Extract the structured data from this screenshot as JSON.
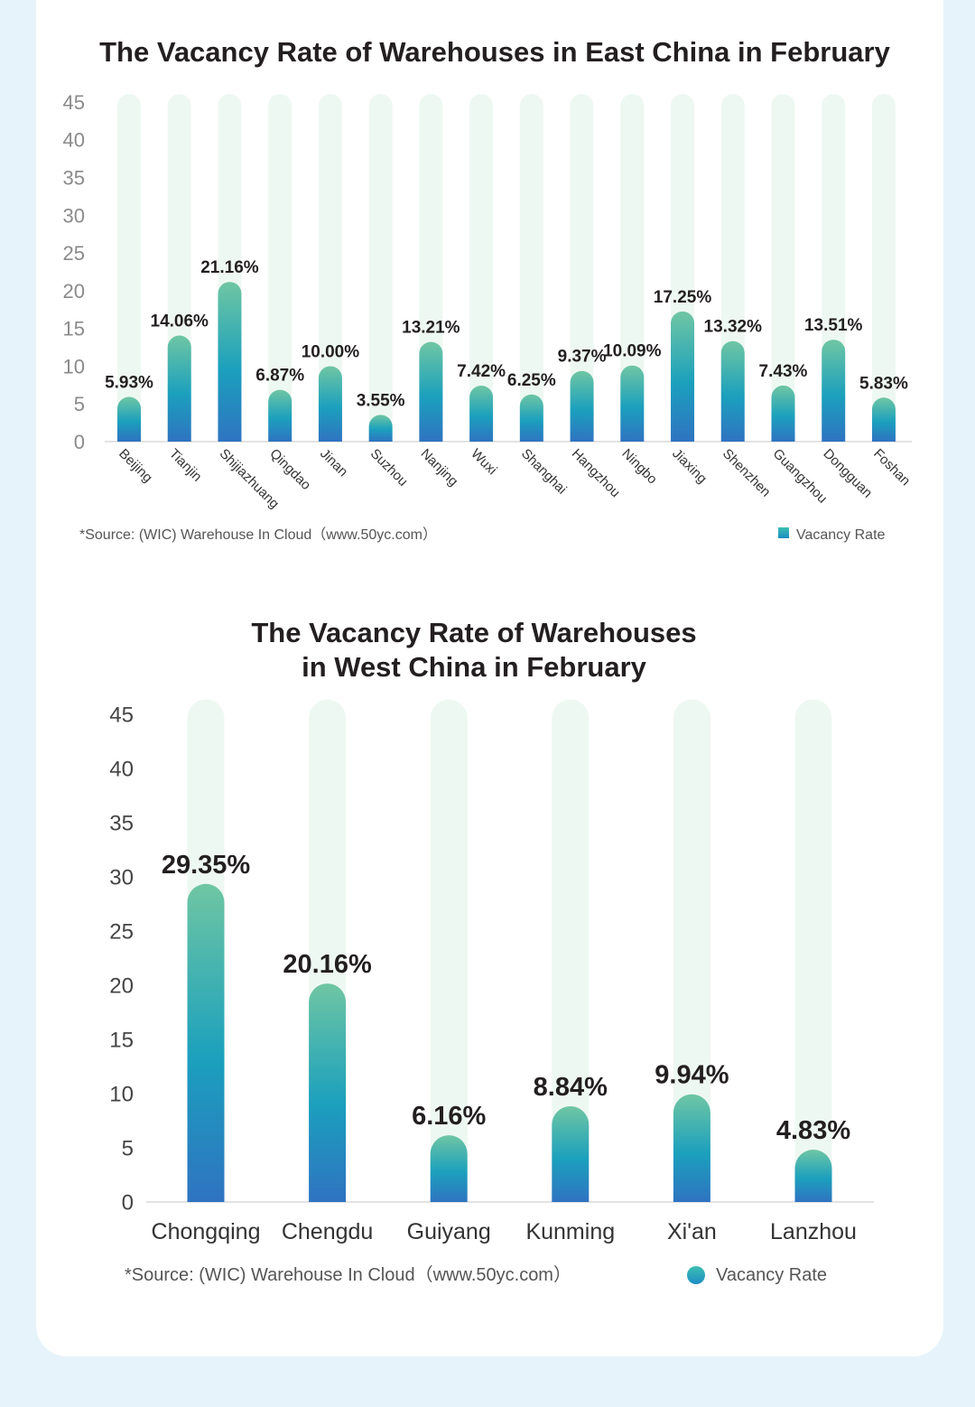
{
  "colors": {
    "page_bg": "#e6f3fb",
    "card_bg": "#ffffff",
    "track": "#eef8f2",
    "bar_top": "#6fc6a3",
    "bar_mid": "#1ba0bd",
    "bar_bottom": "#2f73c1"
  },
  "chart_data": [
    {
      "type": "bar",
      "title": "The Vacancy Rate of Warehouses in East China in February",
      "categories": [
        "Beijing",
        "Tianjin",
        "Shijiazhuang",
        "Qingdao",
        "Jinan",
        "Suzhou",
        "Nanjing",
        "Wuxi",
        "Shanghai",
        "Hangzhou",
        "Ningbo",
        "Jiaxing",
        "Shenzhen",
        "Guangzhou",
        "Dongguan",
        "Foshan"
      ],
      "values": [
        5.93,
        14.06,
        21.16,
        6.87,
        10.0,
        3.55,
        13.21,
        7.42,
        6.25,
        9.37,
        10.09,
        17.25,
        13.32,
        7.43,
        13.51,
        5.83
      ],
      "value_labels": [
        "5.93%",
        "14.06%",
        "21.16%",
        "6.87%",
        "10.00%",
        "3.55%",
        "13.21%",
        "7.42%",
        "6.25%",
        "9.37%",
        "10.09%",
        "17.25%",
        "13.32%",
        "7.43%",
        "13.51%",
        "5.83%"
      ],
      "yticks": [
        "0",
        "5",
        "10",
        "15",
        "20",
        "25",
        "30",
        "35",
        "40",
        "45"
      ],
      "ylim": [
        0,
        45
      ],
      "legend": "Vacancy Rate",
      "legend_position": "bottom-right",
      "source": "*Source: (WIC) Warehouse In Cloud（www.50yc.com）",
      "xlabel": "",
      "ylabel": ""
    },
    {
      "type": "bar",
      "title_lines": [
        "The Vacancy Rate of Warehouses",
        "in West China in February"
      ],
      "categories": [
        "Chongqing",
        "Chengdu",
        "Guiyang",
        "Kunming",
        "Xi'an",
        "Lanzhou"
      ],
      "values": [
        29.35,
        20.16,
        6.16,
        8.84,
        9.94,
        4.83
      ],
      "value_labels": [
        "29.35%",
        "20.16%",
        "6.16%",
        "8.84%",
        "9.94%",
        "4.83%"
      ],
      "yticks": [
        "0",
        "5",
        "10",
        "15",
        "20",
        "25",
        "30",
        "35",
        "40",
        "45"
      ],
      "ylim": [
        0,
        45
      ],
      "legend": "Vacancy Rate",
      "legend_position": "bottom-right",
      "source": "*Source: (WIC) Warehouse In Cloud（www.50yc.com）",
      "xlabel": "",
      "ylabel": ""
    }
  ]
}
